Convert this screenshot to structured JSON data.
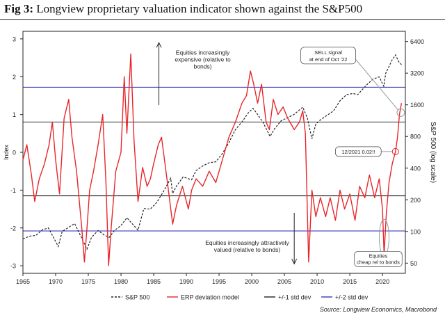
{
  "header": {
    "fig_label": "Fig 3:",
    "title": "Longview proprietary valuation indicator shown against the S&P500"
  },
  "chart_data": {
    "type": "line",
    "title": "Longview proprietary valuation indicator shown against the S&P500",
    "xlabel": "",
    "ylabel": "Index",
    "y2label": "S&P 500 (log scale)",
    "xlim": [
      1965,
      2023.5
    ],
    "ylim": [
      -3.2,
      3.2
    ],
    "y2lim": [
      40,
      8000
    ],
    "x_ticks": [
      1965,
      1970,
      1975,
      1980,
      1985,
      1990,
      1995,
      2000,
      2005,
      2010,
      2015,
      2020
    ],
    "y_ticks": [
      -3,
      -2,
      -1,
      0,
      1,
      2,
      3
    ],
    "y2_ticks": [
      50,
      100,
      200,
      400,
      800,
      1600,
      3200,
      6400
    ],
    "reference_lines": [
      {
        "name": "+/-2 std dev",
        "values": [
          1.72,
          -2.08
        ],
        "color": "#3a37c0"
      },
      {
        "name": "+/-1 std dev",
        "values": [
          0.8,
          -1.15
        ],
        "color": "#222222"
      }
    ],
    "series": [
      {
        "name": "S&P 500",
        "axis": "right",
        "style": "dashed",
        "color": "#222222",
        "x": [
          1965,
          1966,
          1967,
          1968,
          1968.9,
          1970.4,
          1971,
          1972.9,
          1973.5,
          1974.8,
          1975.5,
          1976.5,
          1977.5,
          1978.2,
          1979,
          1980,
          1980.9,
          1982.6,
          1983.5,
          1984.5,
          1985.5,
          1986.5,
          1987.6,
          1987.9,
          1988.5,
          1989.5,
          1990.8,
          1991.5,
          1992.5,
          1993.5,
          1994.5,
          1995.5,
          1996.5,
          1997.5,
          1998.5,
          1999.5,
          2000.2,
          2000.8,
          2001.7,
          2002.8,
          2003.5,
          2004.5,
          2005.5,
          2006.5,
          2007.8,
          2008.5,
          2009.2,
          2009.8,
          2010.5,
          2011.5,
          2012.5,
          2013.5,
          2014.5,
          2015.5,
          2016.2,
          2017.5,
          2018.5,
          2019.5,
          2020.2,
          2020.5,
          2021.5,
          2021.99,
          2022.5,
          2022.9
        ],
        "values": [
          85,
          90,
          92,
          104,
          108,
          72,
          100,
          119,
          100,
          68,
          88,
          102,
          92,
          88,
          102,
          114,
          135,
          103,
          165,
          163,
          190,
          240,
          320,
          230,
          270,
          330,
          310,
          380,
          420,
          450,
          460,
          550,
          700,
          930,
          1100,
          1350,
          1480,
          1320,
          1100,
          800,
          950,
          1130,
          1210,
          1300,
          1520,
          1200,
          760,
          1050,
          1150,
          1270,
          1400,
          1750,
          2000,
          2050,
          2000,
          2450,
          2800,
          2950,
          2400,
          3200,
          4300,
          4770,
          4100,
          3850
        ]
      },
      {
        "name": "ERP deviation model",
        "axis": "left",
        "style": "solid",
        "color": "#e8262a",
        "x": [
          1965,
          1965.6,
          1966.3,
          1966.8,
          1967.5,
          1968.3,
          1969,
          1969.5,
          1970,
          1970.6,
          1971.3,
          1972,
          1972.5,
          1973.2,
          1974,
          1974.4,
          1974.8,
          1975.2,
          1975.8,
          1976.5,
          1977.2,
          1977.7,
          1978.1,
          1978.5,
          1979.2,
          1980,
          1980.5,
          1980.9,
          1981.5,
          1982,
          1982.6,
          1983.3,
          1984,
          1984.5,
          1985,
          1985.7,
          1986.2,
          1986.8,
          1987.4,
          1987.9,
          1988.5,
          1989.4,
          1990.3,
          1990.8,
          1991.5,
          1992.5,
          1993.5,
          1994.5,
          1995.5,
          1996.5,
          1997.5,
          1998.5,
          1999.2,
          1999.8,
          2000.3,
          2000.9,
          2001.5,
          2002.2,
          2002.7,
          2003.3,
          2004,
          2004.8,
          2005.5,
          2006.5,
          2007.3,
          2007.8,
          2008.2,
          2008.7,
          2009.2,
          2009.8,
          2010.5,
          2011.3,
          2012,
          2012.8,
          2013.5,
          2014.2,
          2015,
          2015.8,
          2016.5,
          2017.3,
          2018,
          2018.8,
          2019.5,
          2020,
          2020.25,
          2020.6,
          2021,
          2021.5,
          2021.99,
          2022.3,
          2022.6,
          2022.9
        ],
        "values": [
          -0.2,
          0.2,
          -0.6,
          -1.3,
          -0.7,
          -0.3,
          0.2,
          0.8,
          -0.2,
          -1.1,
          0.9,
          1.4,
          0.4,
          -0.5,
          -2.0,
          -2.9,
          -2.0,
          -1.0,
          -0.5,
          0.2,
          1.0,
          -0.8,
          -3.0,
          -2.0,
          -0.5,
          0.0,
          2.0,
          0.5,
          2.6,
          0.3,
          -1.3,
          -0.4,
          -0.9,
          -0.7,
          -0.3,
          0.2,
          0.4,
          -0.4,
          -1.2,
          -1.9,
          -1.4,
          -0.9,
          -1.5,
          -1.0,
          -0.7,
          -0.9,
          -0.5,
          -0.8,
          -0.2,
          0.4,
          0.8,
          1.3,
          1.5,
          2.15,
          1.8,
          1.3,
          1.8,
          0.8,
          0.6,
          1.4,
          1.0,
          1.2,
          0.9,
          0.6,
          0.8,
          1.1,
          0.5,
          -2.9,
          -1.0,
          -1.7,
          -1.2,
          -1.7,
          -1.2,
          -1.8,
          -1.0,
          -1.5,
          -1.1,
          -1.8,
          -0.9,
          -1.2,
          -0.6,
          -1.2,
          -0.7,
          -1.5,
          -2.7,
          -1.6,
          -0.8,
          -0.3,
          0.02,
          0.4,
          1.0,
          1.3
        ]
      }
    ],
    "annotations": [
      {
        "text": "Equities increasingly expensive (relative to bonds)",
        "arrow": "up"
      },
      {
        "text": "Equities increasingly attractively valued (relative to bonds)",
        "arrow": "down"
      },
      {
        "text": "SELL signal at end of Oct '22",
        "x": 2022.8,
        "y": 1.05
      },
      {
        "text": "12/2021 0.02!!",
        "x": 2021.99,
        "y": 0.02
      },
      {
        "text": "Equities cheap rel to bonds",
        "x": 2020.2,
        "y": -2.3
      }
    ]
  },
  "annotations_text": {
    "expensive_l1": "Equities increasingly",
    "expensive_l2": "expensive (relative to",
    "expensive_l3": "bonds)",
    "cheap_l1": "Equities increasingly attractively",
    "cheap_l2": "valued (relative to bonds)",
    "sell_l1": "SELL signal",
    "sell_l2": "at end of Oct '22",
    "dec2021": "12/2021 0.02!!",
    "cheaprel_l1": "Equities",
    "cheaprel_l2": "cheap rel to bonds"
  },
  "legend": [
    {
      "label": "S&P 500",
      "style": "dashed",
      "color": "#222222"
    },
    {
      "label": "ERP deviation model",
      "style": "solid",
      "color": "#e8262a"
    },
    {
      "label": "+/-1 std dev",
      "style": "solid",
      "color": "#222222"
    },
    {
      "label": "+/-2 std dev",
      "style": "solid",
      "color": "#3a37c0"
    }
  ],
  "source": "Source: Longview Economics, Macrobond"
}
